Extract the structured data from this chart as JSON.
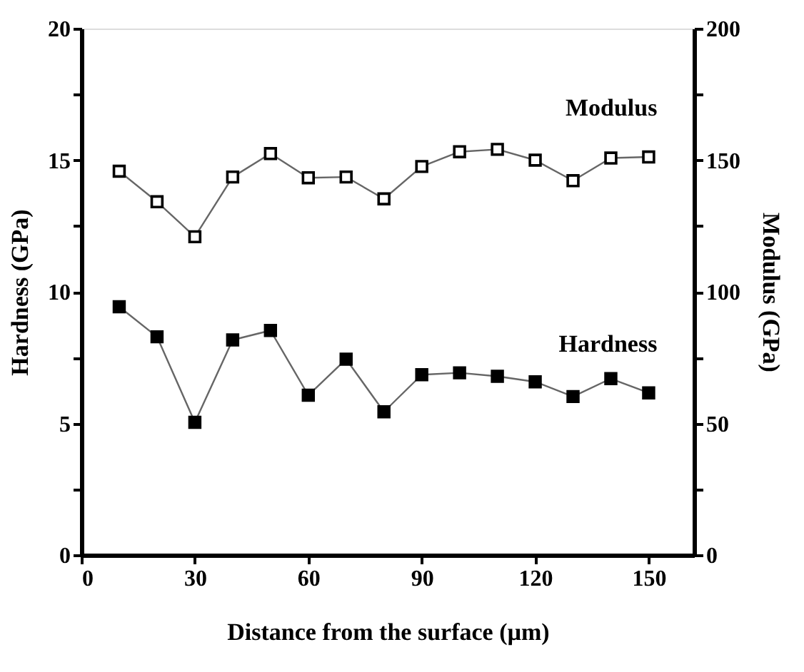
{
  "chart_data": {
    "type": "line",
    "xlabel": "Distance from the surface  (µm)",
    "ylabel": "Hardness (GPa)",
    "y2label": "Modulus (GPa)",
    "x": [
      10,
      20,
      30,
      40,
      50,
      60,
      70,
      80,
      90,
      100,
      110,
      120,
      130,
      140,
      150
    ],
    "series": [
      {
        "name": "Modulus",
        "color": "#000000",
        "axis": "y2",
        "values": [
          145.8,
          134.2,
          120.9,
          143.6,
          152.5,
          143.3,
          143.6,
          135.3,
          147.6,
          153.2,
          154.1,
          150,
          142.2,
          150.8,
          151.2
        ]
      },
      {
        "name": "Hardness",
        "color": "#000000",
        "values": [
          9.43,
          8.29,
          5.04,
          8.17,
          8.53,
          6.07,
          7.44,
          5.44,
          6.85,
          6.92,
          6.79,
          6.58,
          6.02,
          6.7,
          6.16
        ]
      }
    ],
    "xlim": [
      0,
      162
    ],
    "xticks": [
      0,
      30,
      60,
      90,
      120,
      150
    ],
    "ylim": [
      0,
      20
    ],
    "yticks": [
      0,
      {
        "value": 2.5,
        "label": null
      },
      5,
      {
        "value": 7.5,
        "label": null
      },
      10,
      {
        "value": 12.5,
        "label": null
      },
      15,
      {
        "value": 17.5,
        "label": null
      },
      20
    ],
    "y2lim": [
      0,
      200
    ],
    "y2ticks": [
      0,
      {
        "value": 25,
        "label": null
      },
      50,
      {
        "value": 75,
        "label": null
      },
      100,
      {
        "value": 125,
        "label": null
      },
      150,
      {
        "value": 175,
        "label": null
      },
      200
    ],
    "marker": "square",
    "line_style": "solid",
    "grid": false
  }
}
